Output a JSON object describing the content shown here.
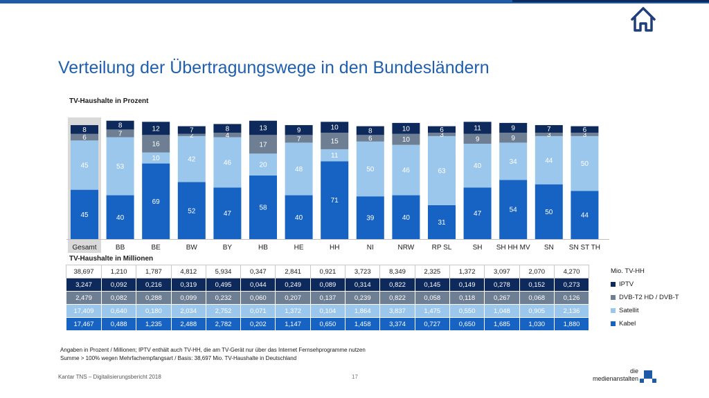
{
  "title": "Verteilung der Übertragungswege in den Bundesländern",
  "subtitle_percent": "TV-Haushalte in Prozent",
  "subtitle_millions": "TV-Haushalte in Millionen",
  "colors": {
    "iptv": "#0e2a5c",
    "dvbt2": "#6e7e93",
    "satellit": "#9cc7ec",
    "kabel": "#1763c4",
    "gesamt_bg": "#d9d9d9",
    "title": "#1f5fb0"
  },
  "chart_data": {
    "type": "bar",
    "stacked": true,
    "categories": [
      "Gesamt",
      "BB",
      "BE",
      "BW",
      "BY",
      "HB",
      "HE",
      "HH",
      "NI",
      "NRW",
      "RP SL",
      "SH",
      "SH HH MV",
      "SN",
      "SN ST TH"
    ],
    "series": [
      {
        "name": "Kabel",
        "values": [
          45,
          40,
          69,
          52,
          47,
          58,
          40,
          71,
          39,
          40,
          31,
          47,
          54,
          50,
          44
        ]
      },
      {
        "name": "Satellit",
        "values": [
          45,
          53,
          10,
          42,
          46,
          20,
          48,
          11,
          50,
          46,
          63,
          40,
          34,
          44,
          50
        ]
      },
      {
        "name": "DVB-T2 HD / DVB-T",
        "values": [
          6,
          7,
          16,
          2,
          4,
          17,
          7,
          15,
          6,
          10,
          3,
          9,
          9,
          3,
          3
        ]
      },
      {
        "name": "IPTV",
        "values": [
          8,
          8,
          12,
          7,
          8,
          13,
          9,
          10,
          8,
          10,
          6,
          11,
          9,
          7,
          6
        ]
      }
    ],
    "ylim": [
      0,
      110
    ],
    "grid": false
  },
  "table": {
    "rows": [
      {
        "label": "Mio. TV-HH",
        "values": [
          "38,697",
          "1,210",
          "1,787",
          "4,812",
          "5,934",
          "0,347",
          "2,841",
          "0,921",
          "3,723",
          "8,349",
          "2,325",
          "1,372",
          "3,097",
          "2,070",
          "4,270"
        ]
      },
      {
        "label": "IPTV",
        "values": [
          "3,247",
          "0,092",
          "0,216",
          "0,319",
          "0,495",
          "0,044",
          "0,249",
          "0,089",
          "0,314",
          "0,822",
          "0,145",
          "0,149",
          "0,278",
          "0,152",
          "0,273"
        ]
      },
      {
        "label": "DVB-T2 HD / DVB-T",
        "values": [
          "2,479",
          "0,082",
          "0,288",
          "0,099",
          "0,232",
          "0,060",
          "0,207",
          "0,137",
          "0,239",
          "0,822",
          "0,058",
          "0,118",
          "0,267",
          "0,068",
          "0,126"
        ]
      },
      {
        "label": "Satellit",
        "values": [
          "17,409",
          "0,640",
          "0,180",
          "2,034",
          "2,752",
          "0,071",
          "1,372",
          "0,104",
          "1,864",
          "3,837",
          "1,475",
          "0,550",
          "1,048",
          "0,905",
          "2,136"
        ]
      },
      {
        "label": "Kabel",
        "values": [
          "17,467",
          "0,488",
          "1,235",
          "2,488",
          "2,782",
          "0,202",
          "1,147",
          "0,650",
          "1,458",
          "3,374",
          "0,727",
          "0,650",
          "1,685",
          "1,030",
          "1,880"
        ]
      }
    ]
  },
  "notes": [
    "Angaben in Prozent / Millionen; IPTV enthält auch TV-HH, die am TV-Gerät nur über das Internet Fernsehprogramme nutzen",
    "Summe > 100% wegen Mehrfachempfangsart / Basis: 38,697 Mio. TV-Haushalte in Deutschland"
  ],
  "footer": "Kantar TNS – Digitalisierungsbericht 2018",
  "page_number": "17",
  "logo": {
    "line1": "die",
    "line2": "medienanstalten"
  },
  "icons": {
    "home": "home-icon"
  }
}
